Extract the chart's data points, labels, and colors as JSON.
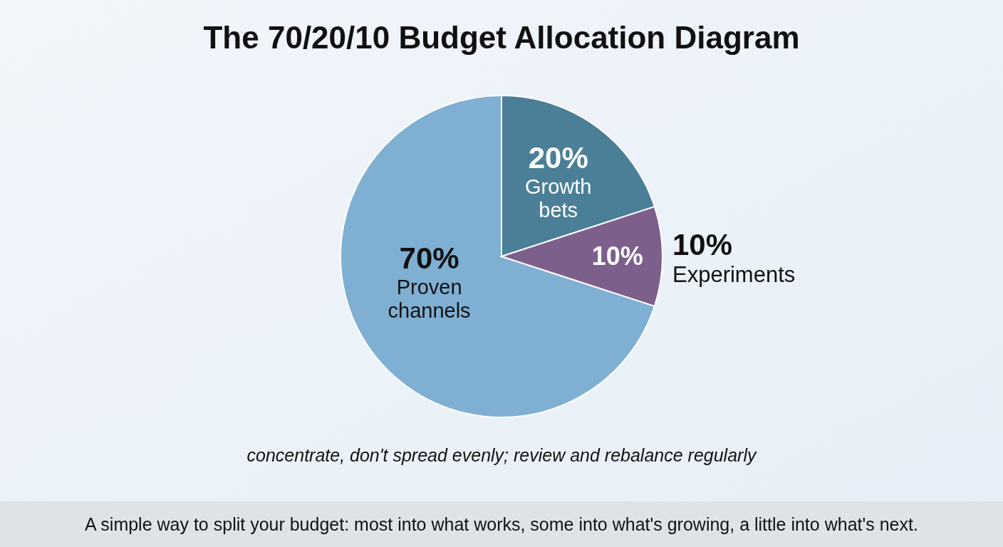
{
  "chart_data": {
    "type": "pie",
    "title": "The 70/20/10 Budget Allocation Diagram",
    "categories": [
      "Proven channels",
      "Growth bets",
      "Experiments"
    ],
    "values": [
      70,
      20,
      10
    ],
    "colors": [
      "#7fb0d3",
      "#4a7f97",
      "#7d5f8c"
    ],
    "value_labels": [
      "70%",
      "20%",
      "10%"
    ],
    "annotations": [
      "concentrate, don't spread evenly; review and rebalance regularly",
      "A simple way to split your budget: most into what works, some into what's growing, a little into what's next.",
      {
        "text": "10%",
        "x": "Experiments"
      }
    ]
  }
}
